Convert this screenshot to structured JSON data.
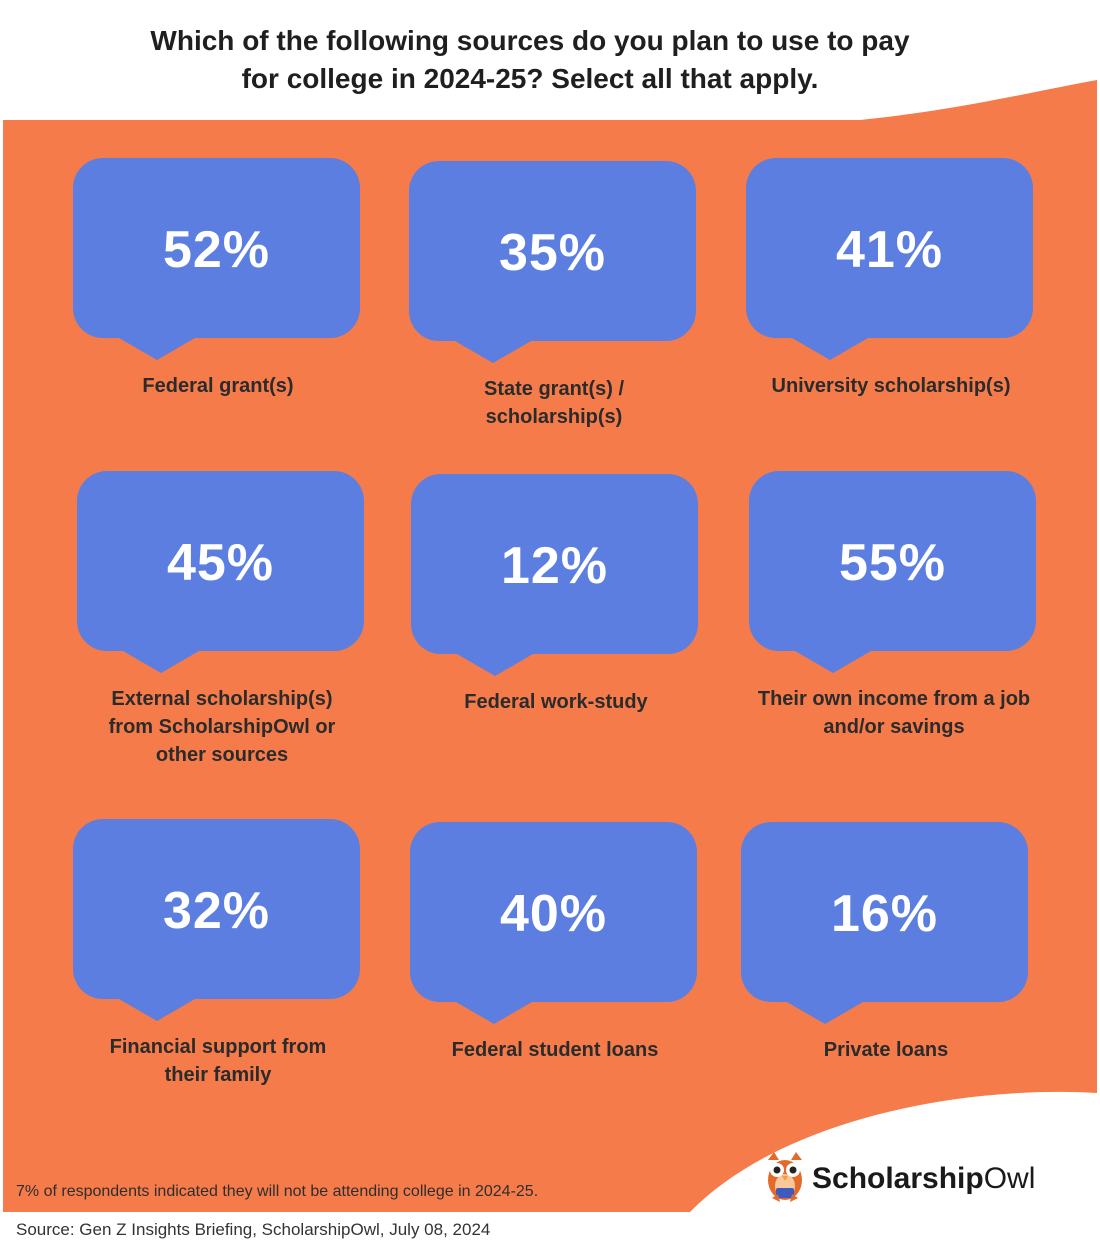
{
  "title_lines": [
    "Which of the following sources do you plan to use to pay",
    "for college in 2024-25? Select all that apply."
  ],
  "colors": {
    "background_orange": "#f57c4a",
    "bubble_blue": "#5b7ee0",
    "text_dark": "#2b2b2b"
  },
  "chart_data": {
    "type": "table",
    "title": "Which of the following sources do you plan to use to pay for college in 2024-25? Select all that apply.",
    "categories": [
      "Federal grant(s)",
      "State grant(s) / scholarship(s)",
      "University scholarship(s)",
      "External scholarship(s) from ScholarshipOwl or other sources",
      "Federal work-study",
      "Their own income from a job and/or savings",
      "Financial support from their family",
      "Federal student loans",
      "Private loans"
    ],
    "values": [
      52,
      35,
      41,
      45,
      12,
      55,
      32,
      40,
      16
    ],
    "unit": "%"
  },
  "cards": [
    {
      "pct": "52%",
      "label_lines": [
        "Federal grant(s)"
      ]
    },
    {
      "pct": "35%",
      "label_lines": [
        "State grant(s) /",
        "scholarship(s)"
      ]
    },
    {
      "pct": "41%",
      "label_lines": [
        "University scholarship(s)"
      ]
    },
    {
      "pct": "45%",
      "label_lines": [
        "External scholarship(s)",
        "from ScholarshipOwl or",
        "other sources"
      ]
    },
    {
      "pct": "12%",
      "label_lines": [
        "Federal work-study"
      ]
    },
    {
      "pct": "55%",
      "label_lines": [
        "Their own income from a job",
        "and/or savings"
      ]
    },
    {
      "pct": "32%",
      "label_lines": [
        "Financial support from",
        "their family"
      ]
    },
    {
      "pct": "40%",
      "label_lines": [
        "Federal student loans"
      ]
    },
    {
      "pct": "16%",
      "label_lines": [
        "Private loans"
      ]
    }
  ],
  "note": "7% of respondents indicated they will not be attending college in 2024-25.",
  "source": "Source: Gen Z Insights Briefing, ScholarshipOwl, July 08, 2024",
  "logo": {
    "bold": "Scholarship",
    "light": "Owl",
    "icon": "owl-mascot-icon"
  }
}
